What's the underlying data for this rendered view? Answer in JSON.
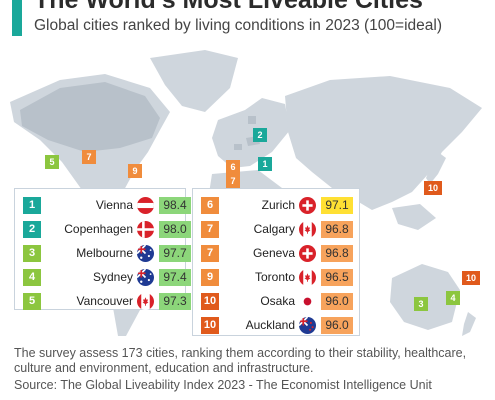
{
  "header": {
    "title": "The World's Most Liveable Cities",
    "subtitle": "Global cities ranked by living conditions in 2023 (100=ideal)"
  },
  "colors": {
    "accent": "#1aa89a",
    "rank_1_2": "#1aa89a",
    "rank_3_5": "#8cc63f",
    "rank_6_9": "#f08c3c",
    "rank_10": "#e05a1c",
    "score_high": "#8cd67a",
    "score_mid": "#ffe033",
    "score_low": "#f7a35c",
    "map_land": "#cfd6dd",
    "map_highlight": "#b8c1ca"
  },
  "chart_data": {
    "type": "table",
    "title": "The World's Most Liveable Cities",
    "subtitle": "Global cities ranked by living conditions in 2023 (100=ideal)",
    "columns": [
      "rank",
      "city",
      "flag",
      "score"
    ],
    "rows": [
      {
        "rank": "1",
        "city": "Vienna",
        "flag": "austria-flag-icon",
        "score": "98.4"
      },
      {
        "rank": "2",
        "city": "Copenhagen",
        "flag": "denmark-flag-icon",
        "score": "98.0"
      },
      {
        "rank": "3",
        "city": "Melbourne",
        "flag": "australia-flag-icon",
        "score": "97.7"
      },
      {
        "rank": "4",
        "city": "Sydney",
        "flag": "australia-flag-icon",
        "score": "97.4"
      },
      {
        "rank": "5",
        "city": "Vancouver",
        "flag": "canada-flag-icon",
        "score": "97.3"
      },
      {
        "rank": "6",
        "city": "Zurich",
        "flag": "switzerland-flag-icon",
        "score": "97.1"
      },
      {
        "rank": "7",
        "city": "Calgary",
        "flag": "canada-flag-icon",
        "score": "96.8"
      },
      {
        "rank": "7",
        "city": "Geneva",
        "flag": "switzerland-flag-icon",
        "score": "96.8"
      },
      {
        "rank": "9",
        "city": "Toronto",
        "flag": "canada-flag-icon",
        "score": "96.5"
      },
      {
        "rank": "10",
        "city": "Osaka",
        "flag": "japan-flag-icon",
        "score": "96.0"
      },
      {
        "rank": "10",
        "city": "Auckland",
        "flag": "new-zealand-flag-icon",
        "score": "96.0"
      }
    ],
    "map_markers": [
      "1",
      "2",
      "3",
      "4",
      "5",
      "6",
      "7",
      "7",
      "9",
      "10",
      "10"
    ]
  },
  "footer": {
    "note": "The survey assess 173 cities, ranking them according to their stability, healthcare, culture and environment, education and infrastructure.",
    "source": "Source: The Global Liveability Index 2023 - The Economist Intelligence Unit"
  }
}
